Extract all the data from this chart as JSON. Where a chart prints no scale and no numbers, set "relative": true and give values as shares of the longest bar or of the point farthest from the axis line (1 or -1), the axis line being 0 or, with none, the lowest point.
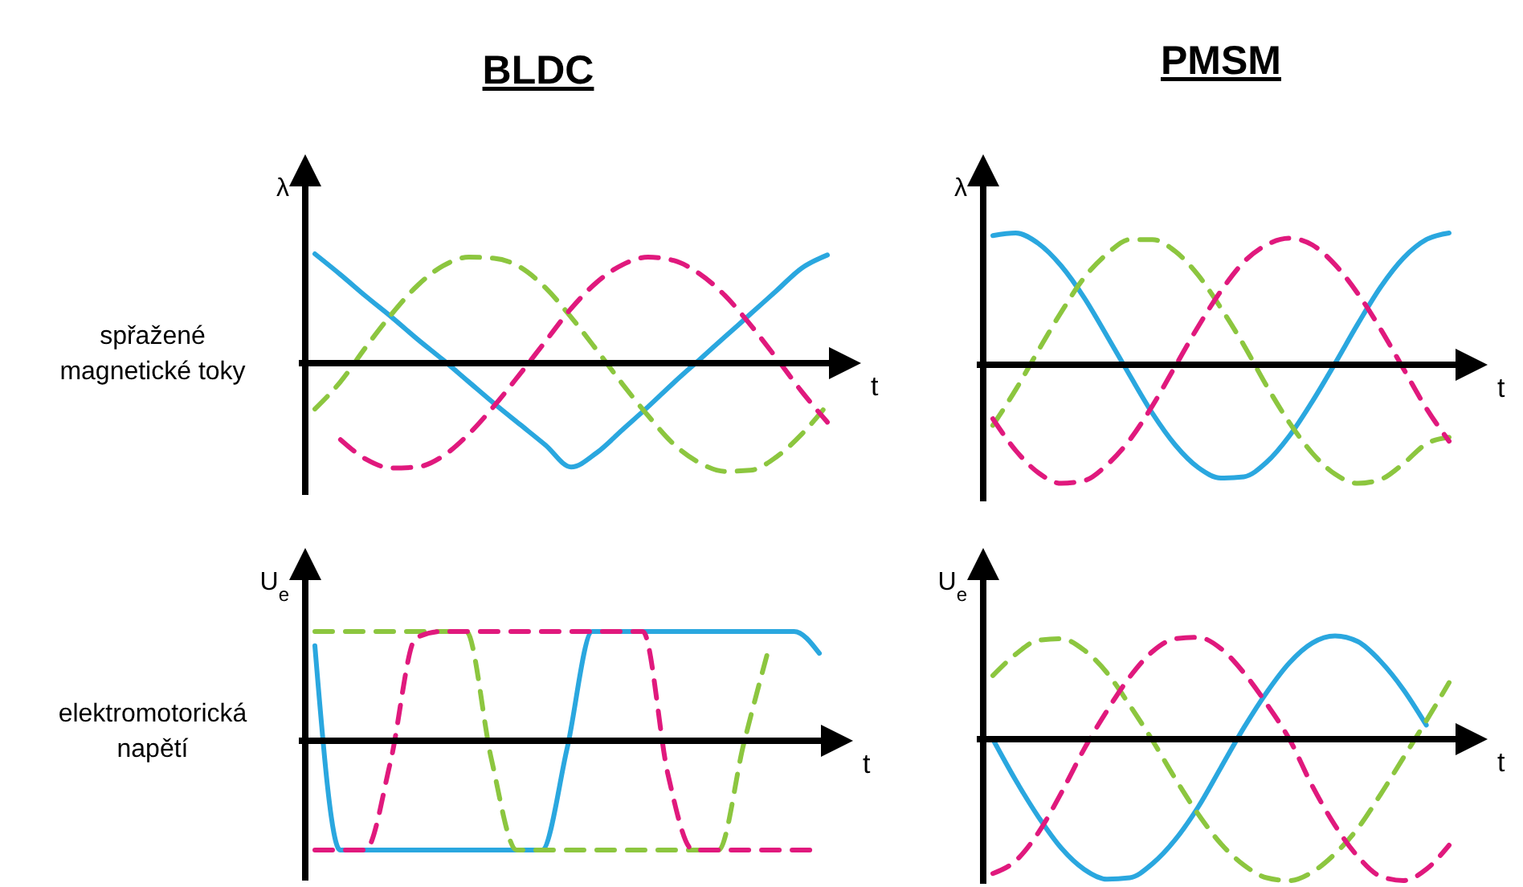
{
  "chart_data": [
    {
      "type": "line",
      "title": "BLDC",
      "xlabel": "t",
      "ylabel": "λ",
      "relative": true,
      "annotations": [
        "spřažené magnetické toky"
      ],
      "categories": [
        null,
        null,
        null,
        null,
        null,
        null,
        null,
        null,
        null,
        null,
        null,
        null,
        null,
        null,
        null,
        null,
        null,
        null,
        null,
        null,
        null
      ],
      "series": [
        {
          "color": "#2aa7df",
          "line_style": "solid",
          "values": [
            1.0,
            0.81,
            0.61,
            0.42,
            0.22,
            0.03,
            -0.17,
            -0.37,
            -0.56,
            -0.75,
            -0.95,
            -0.82,
            -0.61,
            -0.4,
            -0.18,
            0.03,
            0.24,
            0.45,
            0.66,
            0.87,
            0.99
          ]
        },
        {
          "color": "#8cc63f",
          "line_style": "dashed",
          "values": [
            -0.42,
            -0.17,
            0.15,
            0.45,
            0.71,
            0.89,
            0.97,
            0.96,
            0.88,
            0.69,
            0.42,
            0.12,
            -0.19,
            -0.48,
            -0.74,
            -0.91,
            -0.99,
            -0.98,
            -0.86,
            -0.65,
            -0.38
          ]
        },
        {
          "color": "#e0197d",
          "line_style": "dashed",
          "values": [
            null,
            -0.7,
            -0.88,
            -0.96,
            -0.95,
            -0.85,
            -0.65,
            -0.39,
            -0.1,
            0.2,
            0.5,
            0.74,
            0.9,
            0.97,
            0.94,
            0.82,
            0.62,
            0.35,
            0.05,
            -0.26,
            -0.54
          ]
        }
      ]
    },
    {
      "type": "line",
      "title": "PMSM",
      "xlabel": "t",
      "ylabel": "λ",
      "relative": true,
      "categories": [
        null,
        null,
        null,
        null,
        null,
        null,
        null,
        null,
        null,
        null,
        null,
        null,
        null,
        null,
        null,
        null,
        null,
        null,
        null,
        null,
        null
      ],
      "series": [
        {
          "color": "#2aa7df",
          "line_style": "solid",
          "values": [
            0.98,
            1.0,
            0.92,
            0.75,
            0.51,
            0.22,
            -0.08,
            -0.37,
            -0.61,
            -0.78,
            -0.86,
            -0.85,
            -0.74,
            -0.54,
            -0.28,
            0.01,
            0.31,
            0.59,
            0.81,
            0.95,
            1.0
          ]
        },
        {
          "color": "#8cc63f",
          "line_style": "dashed",
          "values": [
            -0.46,
            -0.19,
            0.11,
            0.4,
            0.66,
            0.84,
            0.95,
            0.95,
            0.86,
            0.68,
            0.43,
            0.15,
            -0.16,
            -0.44,
            -0.67,
            -0.83,
            -0.9,
            -0.87,
            -0.75,
            -0.6,
            -0.55
          ]
        },
        {
          "color": "#e0197d",
          "line_style": "dashed",
          "values": [
            -0.41,
            -0.65,
            -0.82,
            -0.9,
            -0.88,
            -0.76,
            -0.57,
            -0.31,
            -0.01,
            0.29,
            0.56,
            0.78,
            0.91,
            0.96,
            0.91,
            0.76,
            0.54,
            0.27,
            -0.03,
            -0.33,
            -0.58
          ]
        }
      ]
    },
    {
      "type": "line",
      "xlabel": "t",
      "ylabel": "U$_{e}$",
      "relative": true,
      "annotations": [
        "elektromotorická napětí"
      ],
      "categories": [
        null,
        null,
        null,
        null,
        null,
        null,
        null,
        null,
        null,
        null,
        null,
        null,
        null,
        null,
        null,
        null,
        null,
        null,
        null,
        null,
        null
      ],
      "series": [
        {
          "color": "#2aa7df",
          "line_style": "solid",
          "values": [
            0.87,
            -1,
            -1,
            -1,
            -1,
            -1,
            -1,
            -1,
            -1,
            -1,
            -0.07,
            1,
            1,
            1,
            1,
            1,
            1,
            1,
            1,
            1,
            0.8
          ]
        },
        {
          "color": "#8cc63f",
          "line_style": "dashed",
          "values": [
            1,
            1,
            1,
            1,
            1,
            1,
            1,
            -0.17,
            -1,
            -1,
            -1,
            -1,
            -1,
            -1,
            -1,
            -1,
            -1,
            -0.03,
            0.85,
            null,
            null
          ]
        },
        {
          "color": "#e0197d",
          "line_style": "dashed",
          "values": [
            -1,
            -1,
            -1,
            -0.19,
            0.94,
            1,
            1,
            1,
            1,
            1,
            1,
            1,
            1,
            1,
            -0.31,
            -1,
            -1,
            -1,
            -1,
            -1,
            -1
          ]
        }
      ]
    },
    {
      "type": "line",
      "xlabel": "t",
      "ylabel": "U$_{e}$",
      "relative": true,
      "categories": [
        null,
        null,
        null,
        null,
        null,
        null,
        null,
        null,
        null,
        null,
        null,
        null,
        null,
        null,
        null,
        null,
        null,
        null,
        null,
        null,
        null
      ],
      "series": [
        {
          "color": "#2aa7df",
          "line_style": "solid",
          "values": [
            0,
            -0.29,
            -0.55,
            -0.77,
            -0.92,
            -0.99,
            -0.98,
            -0.88,
            -0.71,
            -0.48,
            -0.2,
            0.08,
            0.33,
            0.54,
            0.68,
            0.73,
            0.69,
            0.55,
            0.35,
            0.1,
            null
          ]
        },
        {
          "color": "#8cc63f",
          "line_style": "dashed",
          "values": [
            0.45,
            0.6,
            0.7,
            0.71,
            0.63,
            0.47,
            0.24,
            -0.01,
            -0.28,
            -0.53,
            -0.74,
            -0.89,
            -0.98,
            -1.0,
            -0.94,
            -0.81,
            -0.63,
            -0.39,
            -0.13,
            0.13,
            0.4
          ]
        },
        {
          "color": "#e0197d",
          "line_style": "dashed",
          "values": [
            -0.95,
            -0.86,
            -0.66,
            -0.38,
            -0.07,
            0.2,
            0.44,
            0.62,
            0.71,
            0.72,
            0.64,
            0.47,
            0.25,
            0,
            -0.33,
            -0.61,
            -0.83,
            -0.97,
            -1.0,
            -0.92,
            -0.75
          ]
        }
      ]
    }
  ]
}
